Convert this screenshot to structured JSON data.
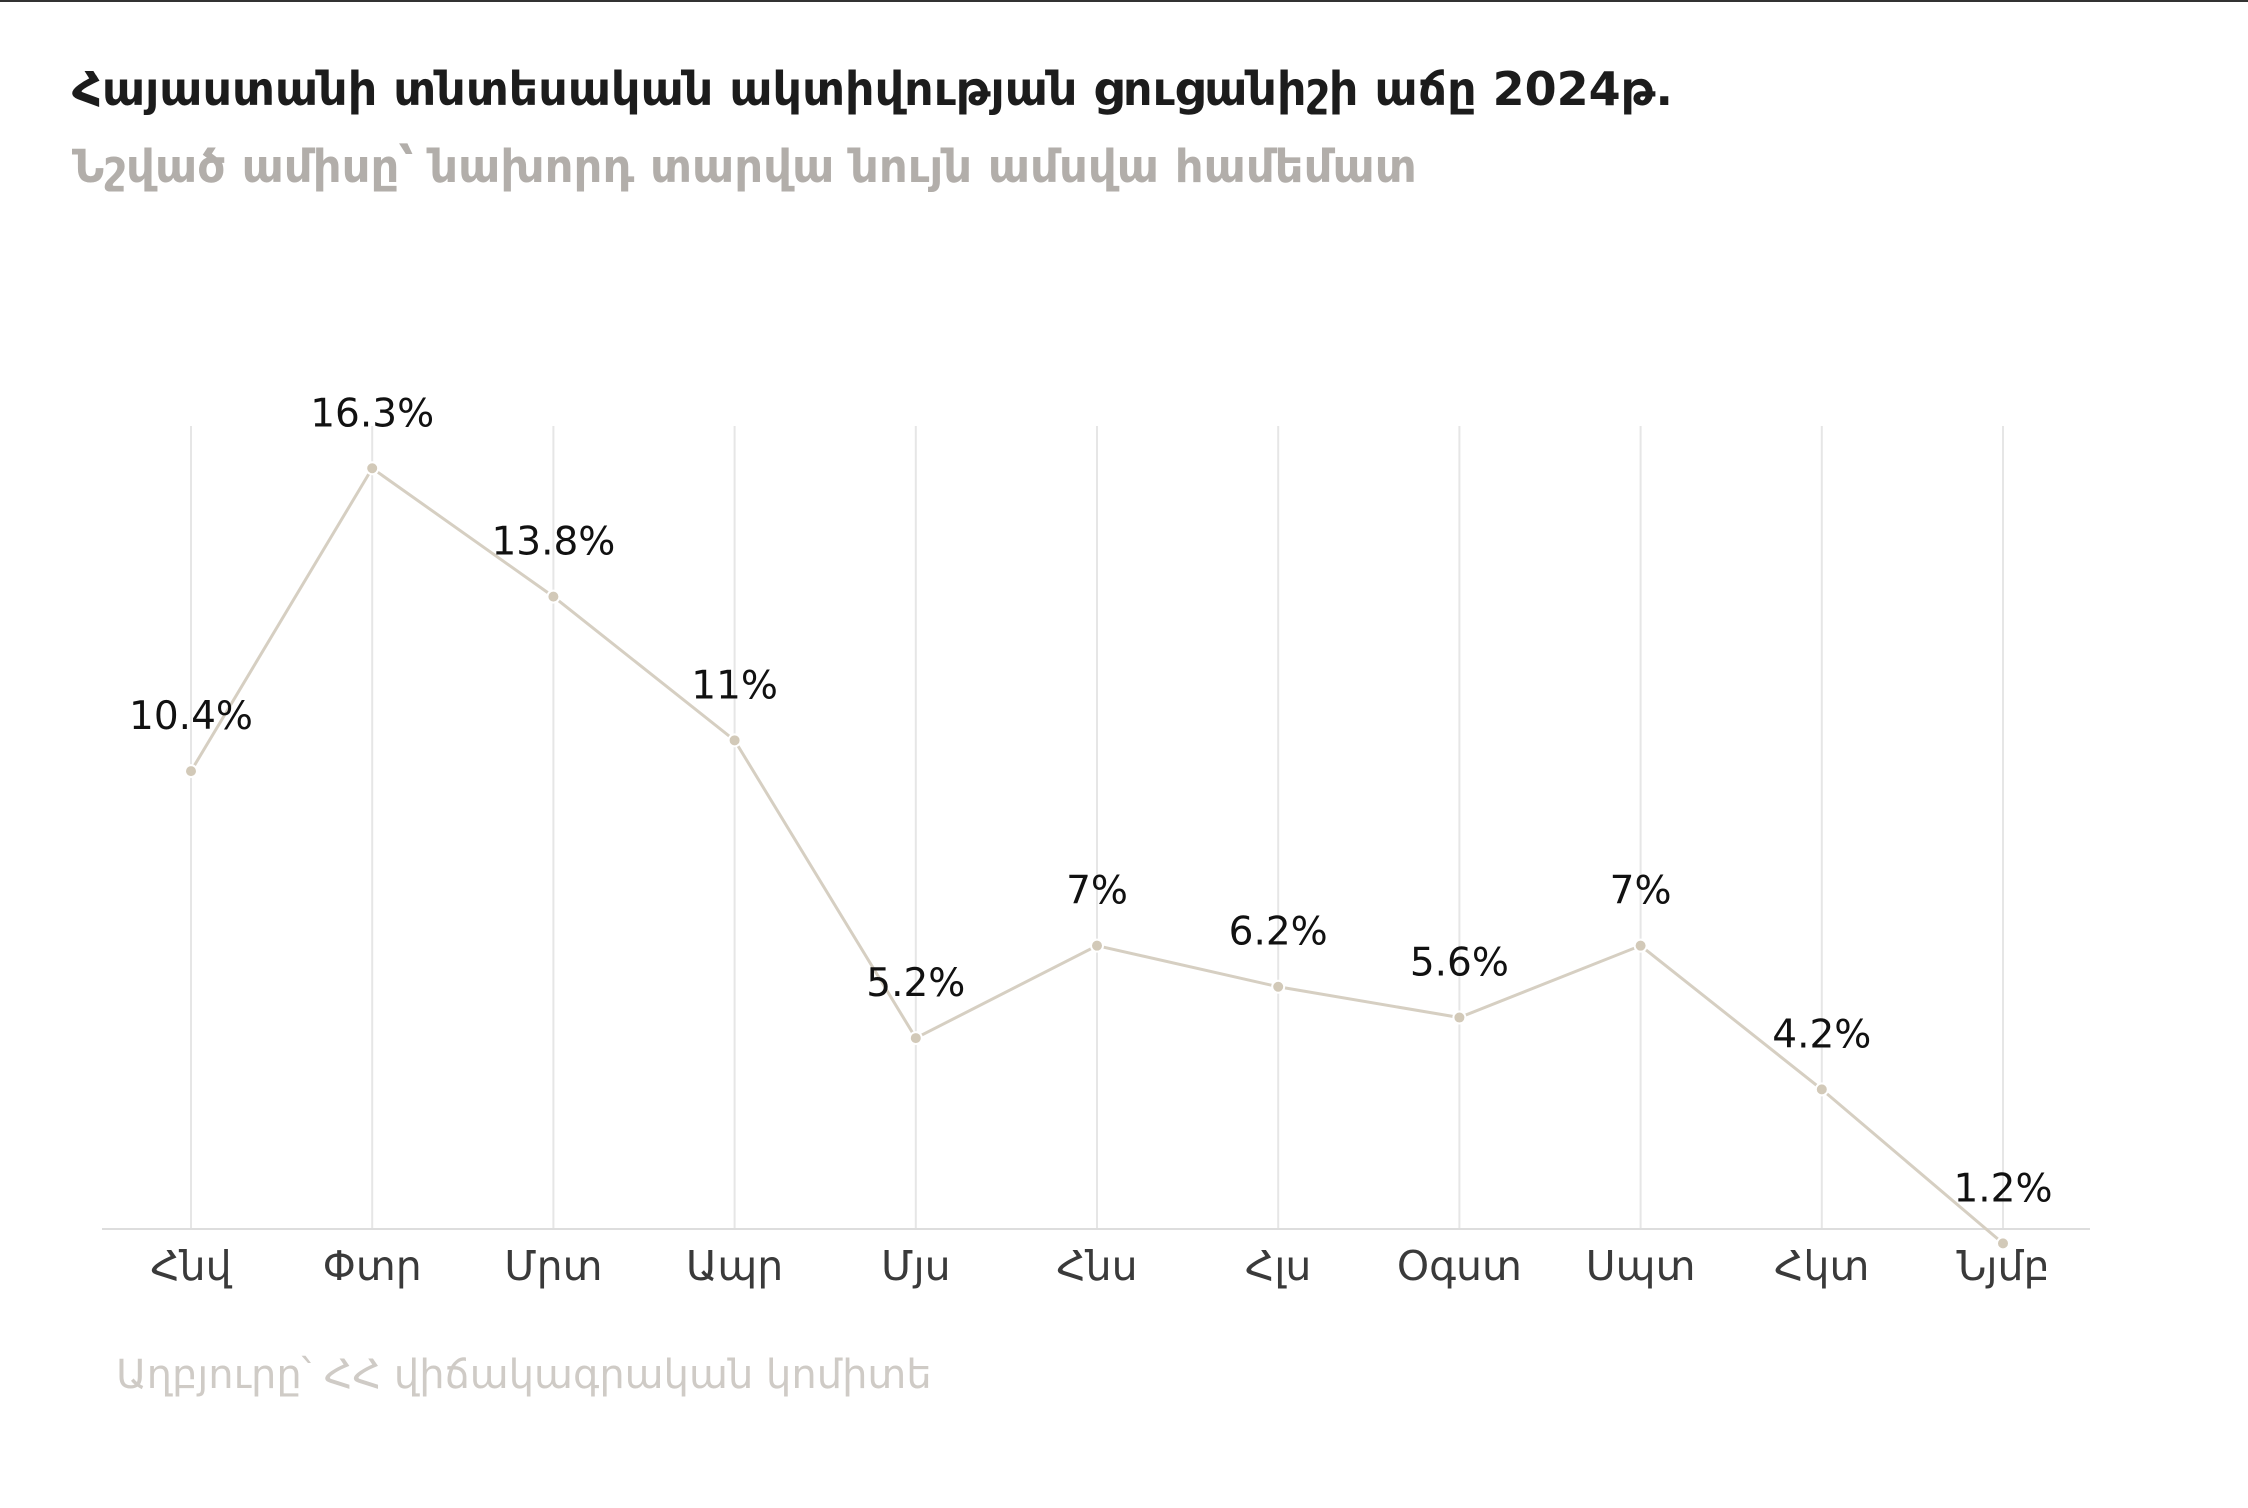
{
  "title": "Հայաստանի տնտեսական ակտիվության ցուցանիշի աճը 2024թ.",
  "subtitle": "Նշված ամիսը՝ նախորդ տարվա նույն ամսվա համեմատ",
  "source": "Աղբյուրը՝ ՀՀ վիճակագրական կոմիտե",
  "colors": {
    "line": "#d6cfc2",
    "point": "#d2c9b8",
    "grid": "#e6e6e6",
    "axis": "#dddddd"
  },
  "chart_data": {
    "type": "line",
    "categories": [
      "Հնվ",
      "Փտր",
      "Մրտ",
      "Ապր",
      "Մյս",
      "Հնս",
      "Հլս",
      "Օգստ",
      "Սպտ",
      "Հկտ",
      "Նյմբ"
    ],
    "values": [
      10.4,
      16.3,
      13.8,
      11,
      5.2,
      7,
      6.2,
      5.6,
      7,
      4.2,
      1.2
    ],
    "labels": [
      "10.4%",
      "16.3%",
      "13.8%",
      "11%",
      "5.2%",
      "7%",
      "6.2%",
      "5.6%",
      "7%",
      "4.2%",
      "1.2%"
    ],
    "title": "Հայաստանի տնտեսական ակտիվության ցուցանիշի աճը 2024թ.",
    "subtitle": "Նշված ամիսը՝ նախորդ տարվա նույն ամսվա համեմատ",
    "xlabel": "",
    "ylabel": "",
    "ylim": [
      0,
      18
    ],
    "grid": "vertical",
    "legend": "none"
  }
}
